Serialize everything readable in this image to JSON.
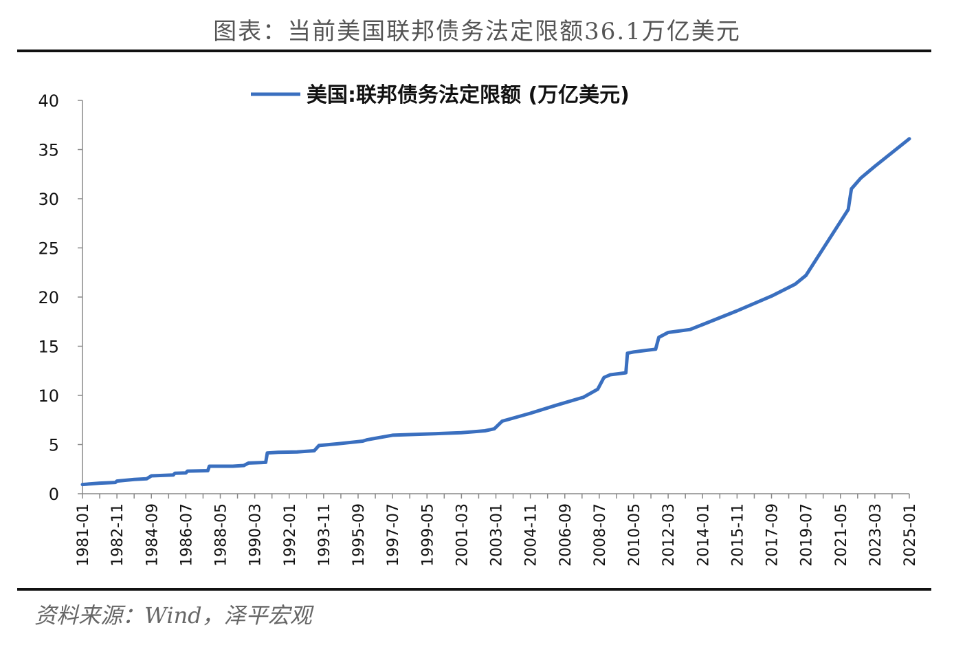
{
  "header": {
    "title": "图表：当前美国联邦债务法定限额36.1万亿美元"
  },
  "footer": {
    "source": "资料来源：Wind，泽平宏观"
  },
  "chart_data": {
    "type": "line",
    "title": "",
    "xlabel": "",
    "ylabel": "",
    "ylim": [
      0,
      40
    ],
    "yticks": [
      "0",
      "5",
      "10",
      "15",
      "20",
      "25",
      "30",
      "35",
      "40"
    ],
    "grid": false,
    "legend": "top-center",
    "color": "#3a6fbf",
    "xticks": [
      "1981-01",
      "1982-11",
      "1984-09",
      "1986-07",
      "1988-05",
      "1990-03",
      "1992-01",
      "1993-11",
      "1995-09",
      "1997-07",
      "1999-05",
      "2001-03",
      "2003-01",
      "2004-11",
      "2006-09",
      "2008-07",
      "2010-05",
      "2012-03",
      "2014-01",
      "2015-11",
      "2017-09",
      "2019-07",
      "2021-05",
      "2023-03",
      "2025-01"
    ],
    "series": [
      {
        "name": "美国:联邦债务法定限额 (万亿美元)",
        "points": [
          [
            "1981-01",
            0.94
          ],
          [
            "1981-12",
            1.08
          ],
          [
            "1982-10",
            1.15
          ],
          [
            "1982-11",
            1.29
          ],
          [
            "1983-10",
            1.45
          ],
          [
            "1984-06",
            1.52
          ],
          [
            "1984-09",
            1.82
          ],
          [
            "1985-11",
            1.9
          ],
          [
            "1985-12",
            2.08
          ],
          [
            "1986-07",
            2.11
          ],
          [
            "1986-08",
            2.3
          ],
          [
            "1987-09",
            2.34
          ],
          [
            "1987-10",
            2.8
          ],
          [
            "1989-01",
            2.8
          ],
          [
            "1989-08",
            2.87
          ],
          [
            "1989-11",
            3.12
          ],
          [
            "1990-10",
            3.19
          ],
          [
            "1990-11",
            4.14
          ],
          [
            "1991-06",
            4.22
          ],
          [
            "1992-06",
            4.25
          ],
          [
            "1993-05",
            4.37
          ],
          [
            "1993-08",
            4.9
          ],
          [
            "1994-08",
            5.08
          ],
          [
            "1995-12",
            5.35
          ],
          [
            "1996-03",
            5.5
          ],
          [
            "1997-07",
            5.95
          ],
          [
            "1999-05",
            6.08
          ],
          [
            "2001-03",
            6.2
          ],
          [
            "2002-06",
            6.4
          ],
          [
            "2002-12",
            6.6
          ],
          [
            "2003-05",
            7.38
          ],
          [
            "2004-11",
            8.18
          ],
          [
            "2006-03",
            8.97
          ],
          [
            "2007-09",
            9.82
          ],
          [
            "2008-06",
            10.62
          ],
          [
            "2008-10",
            11.82
          ],
          [
            "2009-02",
            12.1
          ],
          [
            "2009-12",
            12.3
          ],
          [
            "2010-01",
            14.29
          ],
          [
            "2010-05",
            14.42
          ],
          [
            "2011-07",
            14.7
          ],
          [
            "2011-09",
            15.9
          ],
          [
            "2012-03",
            16.4
          ],
          [
            "2013-05",
            16.7
          ],
          [
            "2014-01",
            17.2
          ],
          [
            "2015-11",
            18.6
          ],
          [
            "2017-09",
            20.1
          ],
          [
            "2018-12",
            21.3
          ],
          [
            "2019-07",
            22.2
          ],
          [
            "2021-10",
            28.9
          ],
          [
            "2021-12",
            31.0
          ],
          [
            "2022-06",
            32.1
          ],
          [
            "2023-03",
            33.3
          ],
          [
            "2025-01",
            36.1
          ]
        ]
      }
    ]
  }
}
